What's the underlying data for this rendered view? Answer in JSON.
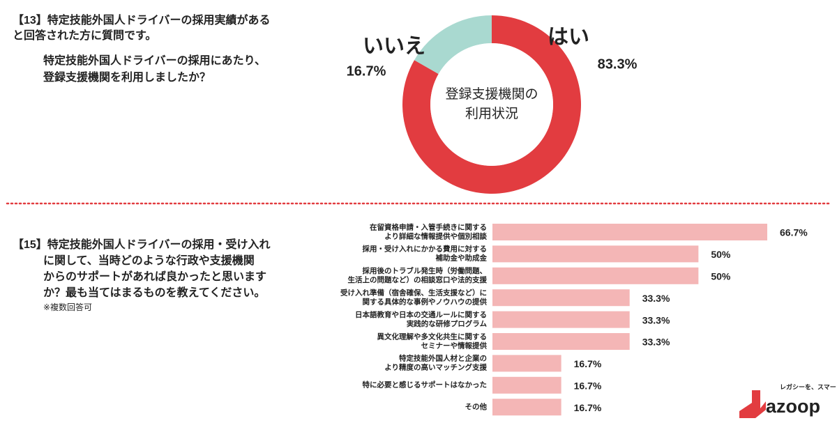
{
  "chart_data": [
    {
      "type": "donut",
      "question": [
        "【13】特定技能外国人ドライバーの採用実績がある",
        "と回答された方に質問です。",
        "特定技能外国人ドライバーの採用にあたり、",
        "登録支援機関を利用しましたか？"
      ],
      "center_label": [
        "登録支援機関の",
        "利用状況"
      ],
      "categories": [
        "はい",
        "いいえ"
      ],
      "values": [
        83.3,
        16.7
      ],
      "value_labels": [
        "83.3%",
        "16.7%"
      ],
      "colors": [
        "#e23c40",
        "#a9d9d0"
      ]
    },
    {
      "type": "hbar",
      "question": [
        "【15】特定技能外国人ドライバーの採用・受け入れ",
        "に関して、当時どのような行政や支援機関",
        "からのサポートがあれば良かったと思います",
        "か？最も当てはまるものを教えてください。"
      ],
      "note": "※複数回答可",
      "categories": [
        [
          "在留資格申請・入管手続きに関する",
          "より詳細な情報提供や個別相談"
        ],
        [
          "採用・受け入れにかかる費用に対する",
          "補助金や助成金"
        ],
        [
          "採用後のトラブル発生時（労働問題、",
          "生活上の問題など）の相談窓口や法的支援"
        ],
        [
          "受け入れ準備（宿舎確保、生活支援など）に",
          "関する具体的な事例やノウハウの提供"
        ],
        [
          "日本語教育や日本の交通ルールに関する",
          "実践的な研修プログラム"
        ],
        [
          "異文化理解や多文化共生に関する",
          "セミナーや情報提供"
        ],
        [
          "特定技能外国人材と企業の",
          "より精度の高いマッチング支援"
        ],
        [
          "特に必要と感じるサポートはなかった"
        ],
        [
          "その他"
        ]
      ],
      "values": [
        66.7,
        50,
        50,
        33.3,
        33.3,
        33.3,
        16.7,
        16.7,
        16.7
      ],
      "value_labels": [
        "66.7%",
        "50%",
        "50%",
        "33.3%",
        "33.3%",
        "33.3%",
        "16.7%",
        "16.7%",
        "16.7%"
      ],
      "color": "#f4b6b6"
    }
  ],
  "logo": {
    "tagline": "レガシーを、スマートに。",
    "name": "azoop"
  }
}
